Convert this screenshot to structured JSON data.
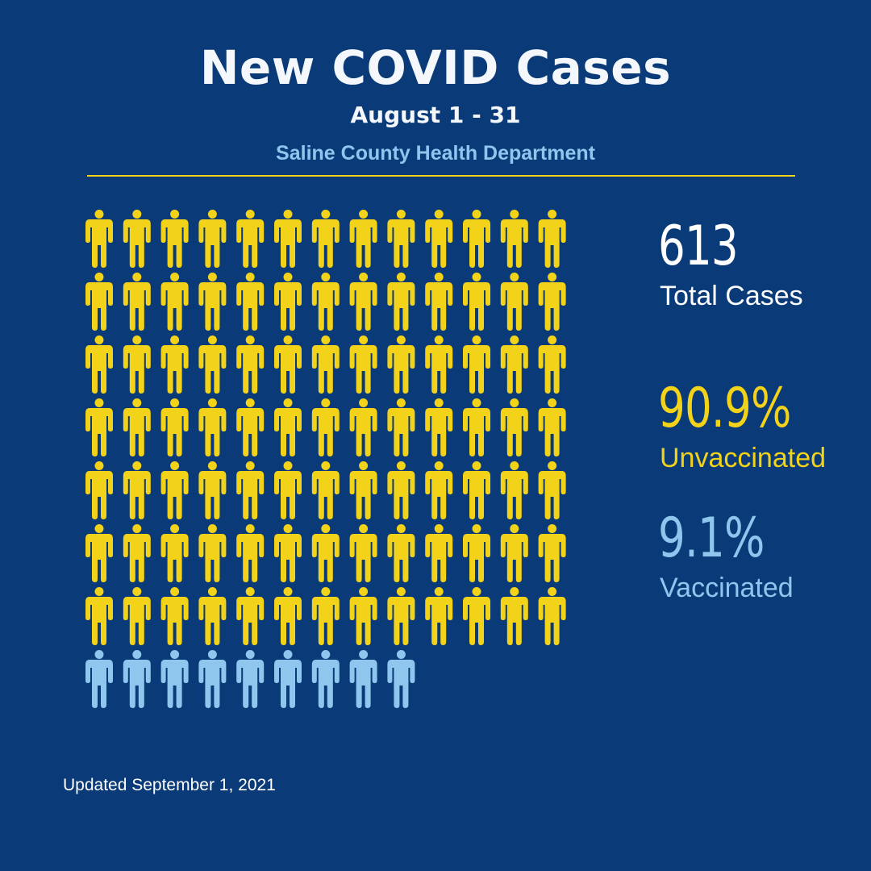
{
  "header": {
    "title": "New COVID Cases",
    "subtitle": "August 1 - 31",
    "source": "Saline County Health Department"
  },
  "stats": {
    "total_value": "613",
    "total_label": "Total Cases",
    "unvaccinated_value": "90.9%",
    "unvaccinated_label": "Unvaccinated",
    "vaccinated_value": "9.1%",
    "vaccinated_label": "Vaccinated"
  },
  "pictogram": {
    "icon": "person-icon",
    "rows": [
      {
        "count": 13,
        "group": "unvaccinated"
      },
      {
        "count": 13,
        "group": "unvaccinated"
      },
      {
        "count": 13,
        "group": "unvaccinated"
      },
      {
        "count": 13,
        "group": "unvaccinated"
      },
      {
        "count": 13,
        "group": "unvaccinated"
      },
      {
        "count": 13,
        "group": "unvaccinated"
      },
      {
        "count": 13,
        "group": "unvaccinated"
      },
      {
        "count": 9,
        "group": "vaccinated"
      }
    ],
    "colors": {
      "unvaccinated": "#f3d21a",
      "vaccinated": "#8ec6ee"
    }
  },
  "footer": {
    "updated": "Updated September 1, 2021"
  },
  "colors": {
    "background": "#0a3b78",
    "accent_yellow": "#f3d21a",
    "accent_blue": "#8ec6ee",
    "text": "#ffffff"
  }
}
